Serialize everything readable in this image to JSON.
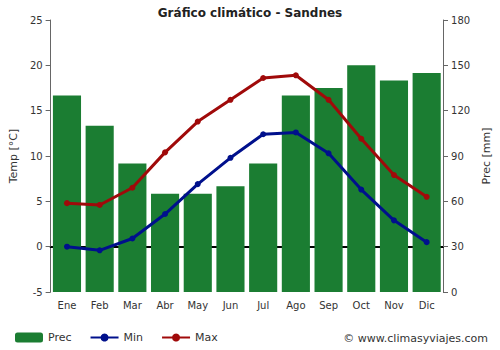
{
  "chart_data": {
    "type": "bar",
    "title": "Gráfico climático - Sandnes",
    "y_label": "Temp [°C]",
    "y2_label": "Prec [mm]",
    "annotations": [
      "© www.climasyviajes.com"
    ],
    "categories": [
      "Ene",
      "Feb",
      "Mar",
      "Abr",
      "May",
      "Jun",
      "Jul",
      "Ago",
      "Sep",
      "Oct",
      "Nov",
      "Dic"
    ],
    "series": [
      {
        "name": "Prec",
        "type": "bar",
        "axis": "y2",
        "color": "#1b7d32",
        "values": [
          130,
          110,
          85,
          65,
          65,
          70,
          85,
          130,
          135,
          150,
          140,
          145
        ]
      },
      {
        "name": "Min",
        "type": "line",
        "color": "#00108c",
        "marker": "circle",
        "values": [
          0.0,
          -0.4,
          0.9,
          3.6,
          6.9,
          9.8,
          12.4,
          12.6,
          10.3,
          6.3,
          2.9,
          0.5
        ]
      },
      {
        "name": "Max",
        "type": "line",
        "color": "#a00a0a",
        "marker": "circle",
        "values": [
          4.8,
          4.6,
          6.5,
          10.4,
          13.8,
          16.2,
          18.6,
          18.9,
          16.2,
          11.9,
          7.9,
          5.5
        ]
      }
    ],
    "ylim": [
      -5,
      25
    ],
    "yticks": [
      -5,
      0,
      5,
      10,
      15,
      20,
      25
    ],
    "y2lim": [
      0,
      180
    ],
    "y2ticks": [
      0,
      30,
      60,
      90,
      120,
      150,
      180
    ],
    "grid": false,
    "legend": "bottom-left"
  }
}
